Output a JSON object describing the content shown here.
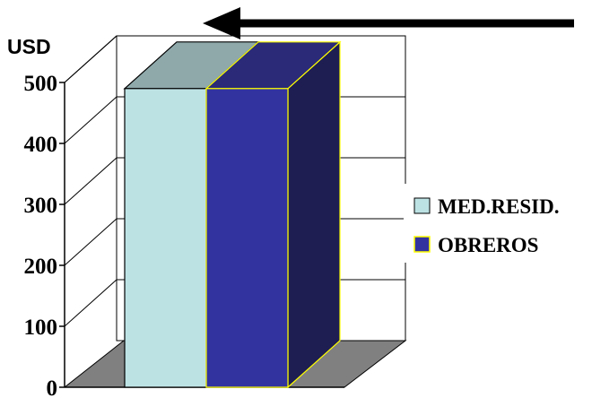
{
  "chart_data": {
    "type": "bar",
    "ylabel": "USD",
    "yticks": [
      "0",
      "100",
      "200",
      "300",
      "400",
      "500"
    ],
    "ylim": [
      0,
      500
    ],
    "categories": [
      ""
    ],
    "series": [
      {
        "name": "MED.RESID.",
        "values": [
          490
        ],
        "color": "#bde2e4",
        "top_color": "#8fa9ab",
        "side_color": "#8fa9ab"
      },
      {
        "name": "OBREROS",
        "values": [
          490
        ],
        "color": "#3333a0",
        "top_color": "#2a2a78",
        "side_color": "#1e1e52"
      }
    ],
    "grid": true,
    "legend_position": "right",
    "annotation": "left-pointing-arrow",
    "style": "3d"
  }
}
